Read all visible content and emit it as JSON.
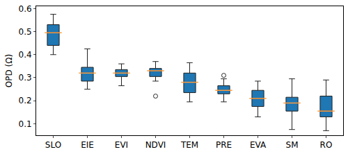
{
  "chart_data": {
    "type": "box",
    "y_label": "OPD (Ω)",
    "categories": [
      "SLO",
      "EIE",
      "EVI",
      "NDVI",
      "TEM",
      "PRE",
      "EVA",
      "SM",
      "RO"
    ],
    "min": [
      0.4,
      0.25,
      0.265,
      0.285,
      0.195,
      0.195,
      0.13,
      0.075,
      0.07
    ],
    "q1": [
      0.44,
      0.285,
      0.305,
      0.305,
      0.235,
      0.23,
      0.175,
      0.155,
      0.13
    ],
    "median": [
      0.495,
      0.32,
      0.32,
      0.33,
      0.28,
      0.245,
      0.21,
      0.19,
      0.155
    ],
    "q3": [
      0.53,
      0.345,
      0.335,
      0.34,
      0.32,
      0.265,
      0.245,
      0.215,
      0.22
    ],
    "max": [
      0.575,
      0.425,
      0.36,
      0.37,
      0.365,
      0.295,
      0.285,
      0.295,
      0.29
    ],
    "outliers": [
      [],
      [],
      [],
      [
        0.22
      ],
      [],
      [
        0.31
      ],
      [],
      [],
      []
    ],
    "color": "#1f77b4",
    "ylim": [
      0.05,
      0.61
    ],
    "yticks": [
      0.1,
      0.2,
      0.3,
      0.4,
      0.5,
      0.6
    ],
    "grid": false
  }
}
